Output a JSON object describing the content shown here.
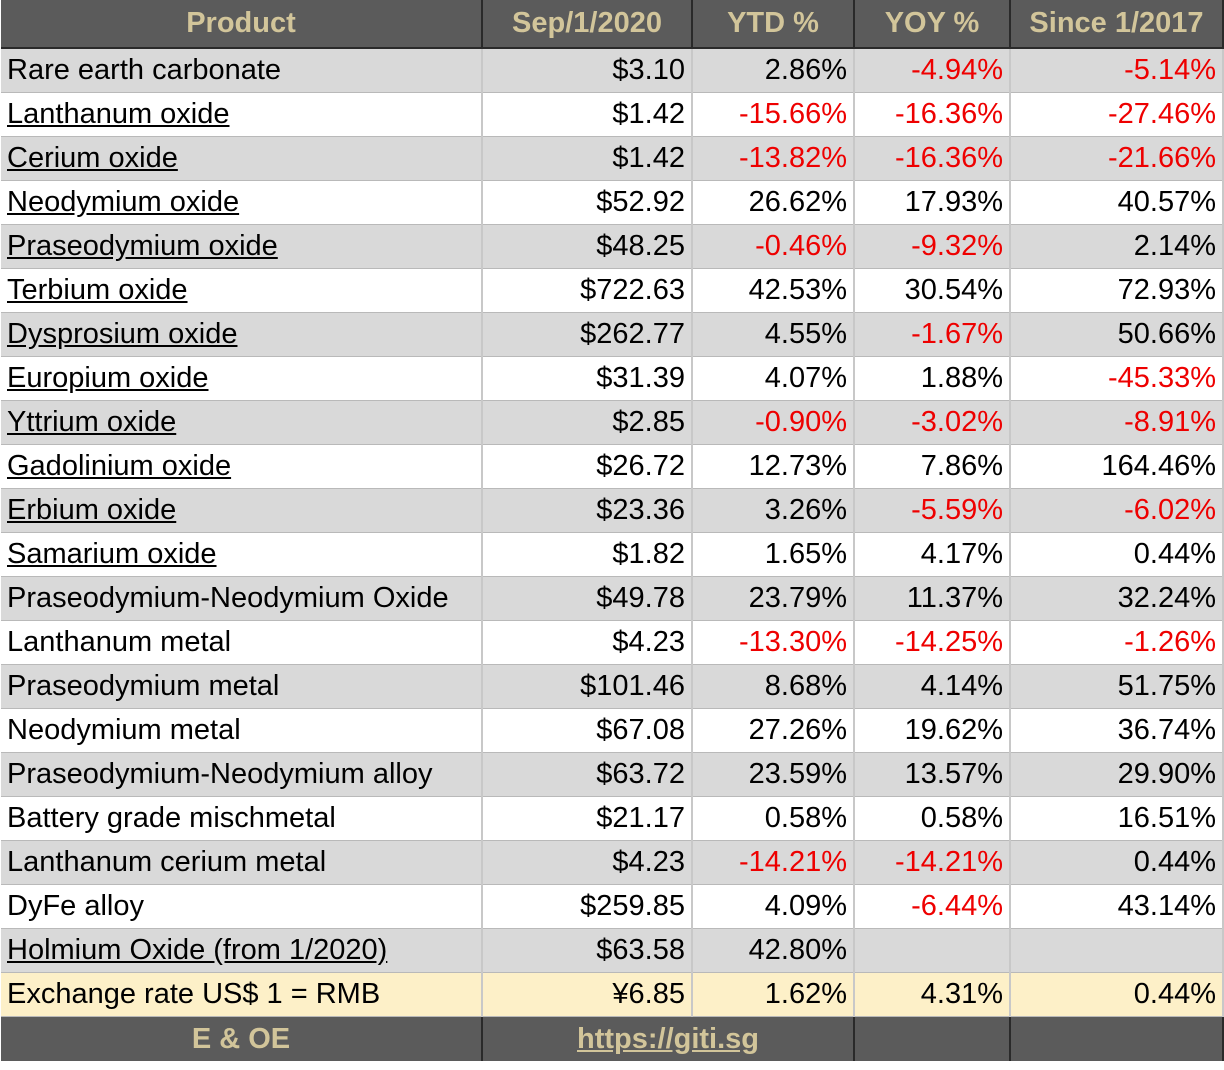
{
  "headers": [
    "Product",
    "Sep/1/2020",
    "YTD %",
    "YOY %",
    "Since 1/2017"
  ],
  "rows": [
    {
      "product": "Rare earth carbonate",
      "link": false,
      "price": "$3.10",
      "ytd": "2.86%",
      "yoy": "-4.94%",
      "since": "-5.14%"
    },
    {
      "product": "Lanthanum oxide",
      "link": true,
      "price": "$1.42",
      "ytd": "-15.66%",
      "yoy": "-16.36%",
      "since": "-27.46%"
    },
    {
      "product": "Cerium oxide",
      "link": true,
      "price": "$1.42",
      "ytd": "-13.82%",
      "yoy": "-16.36%",
      "since": "-21.66%"
    },
    {
      "product": "Neodymium oxide",
      "link": true,
      "price": "$52.92",
      "ytd": "26.62%",
      "yoy": "17.93%",
      "since": "40.57%"
    },
    {
      "product": "Praseodymium oxide",
      "link": true,
      "price": "$48.25",
      "ytd": "-0.46%",
      "yoy": "-9.32%",
      "since": "2.14%"
    },
    {
      "product": "Terbium oxide",
      "link": true,
      "price": "$722.63",
      "ytd": "42.53%",
      "yoy": "30.54%",
      "since": "72.93%"
    },
    {
      "product": "Dysprosium oxide",
      "link": true,
      "price": "$262.77",
      "ytd": "4.55%",
      "yoy": "-1.67%",
      "since": "50.66%"
    },
    {
      "product": "Europium oxide",
      "link": true,
      "price": "$31.39",
      "ytd": "4.07%",
      "yoy": "1.88%",
      "since": "-45.33%"
    },
    {
      "product": "Yttrium oxide",
      "link": true,
      "price": "$2.85",
      "ytd": "-0.90%",
      "yoy": "-3.02%",
      "since": "-8.91%"
    },
    {
      "product": "Gadolinium oxide",
      "link": true,
      "price": "$26.72",
      "ytd": "12.73%",
      "yoy": "7.86%",
      "since": "164.46%"
    },
    {
      "product": "Erbium oxide",
      "link": true,
      "price": "$23.36",
      "ytd": "3.26%",
      "yoy": "-5.59%",
      "since": "-6.02%"
    },
    {
      "product": "Samarium oxide",
      "link": true,
      "price": "$1.82",
      "ytd": "1.65%",
      "yoy": "4.17%",
      "since": "0.44%"
    },
    {
      "product": "Praseodymium-Neodymium Oxide",
      "link": false,
      "price": "$49.78",
      "ytd": "23.79%",
      "yoy": "11.37%",
      "since": "32.24%"
    },
    {
      "product": "Lanthanum metal",
      "link": false,
      "price": "$4.23",
      "ytd": "-13.30%",
      "yoy": "-14.25%",
      "since": "-1.26%"
    },
    {
      "product": "Praseodymium metal",
      "link": false,
      "price": "$101.46",
      "ytd": "8.68%",
      "yoy": "4.14%",
      "since": "51.75%"
    },
    {
      "product": "Neodymium metal",
      "link": false,
      "price": "$67.08",
      "ytd": "27.26%",
      "yoy": "19.62%",
      "since": "36.74%"
    },
    {
      "product": "Praseodymium-Neodymium alloy",
      "link": false,
      "price": "$63.72",
      "ytd": "23.59%",
      "yoy": "13.57%",
      "since": "29.90%"
    },
    {
      "product": "Battery grade mischmetal",
      "link": false,
      "price": "$21.17",
      "ytd": "0.58%",
      "yoy": "0.58%",
      "since": "16.51%"
    },
    {
      "product": "Lanthanum cerium metal",
      "link": false,
      "price": "$4.23",
      "ytd": "-14.21%",
      "yoy": "-14.21%",
      "since": "0.44%"
    },
    {
      "product": "DyFe alloy",
      "link": false,
      "price": "$259.85",
      "ytd": "4.09%",
      "yoy": "-6.44%",
      "since": "43.14%"
    },
    {
      "product": "Holmium Oxide (from 1/2020)",
      "link": true,
      "price": "$63.58",
      "ytd": "42.80%",
      "yoy": "",
      "since": ""
    }
  ],
  "exchange": {
    "product": "Exchange rate US$ 1 = RMB",
    "price": "¥6.85",
    "ytd": "1.62%",
    "yoy": "4.31%",
    "since": "0.44%"
  },
  "footer": {
    "left": "E & OE",
    "url": "https://giti.sg"
  },
  "colors": {
    "header_bg": "#5b5b5b",
    "header_text": "#d2c59a",
    "negative": "#ee0000",
    "stripe": "#d9d9d9",
    "exchange_bg": "#fdf0c8"
  }
}
